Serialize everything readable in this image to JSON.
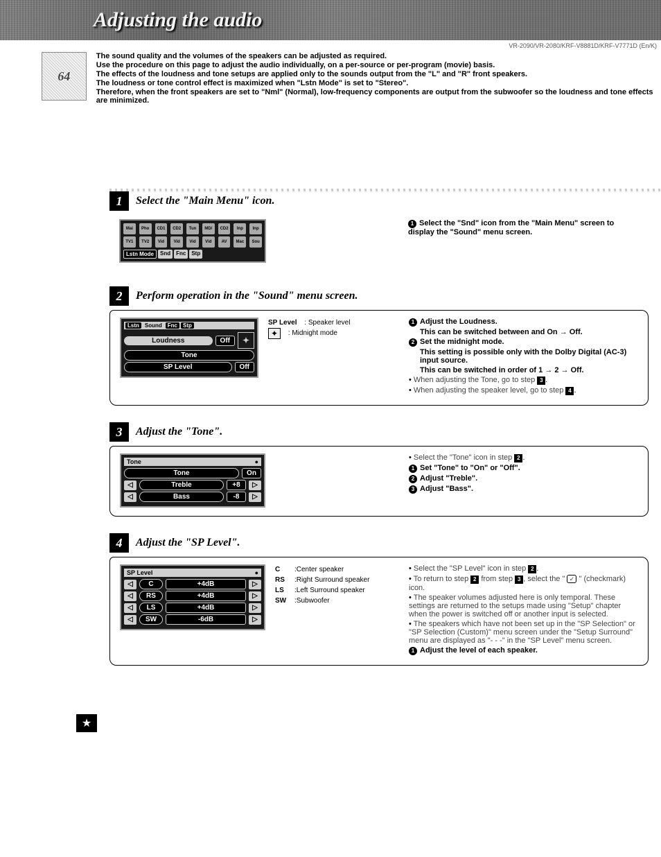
{
  "header": {
    "title": "Adjusting the audio",
    "model_line": "VR-2090/VR-2080/KRF-V8881D/KRF-V7771D (En/K)",
    "page_number": "64"
  },
  "intro_paragraphs": [
    "The sound quality and the volumes of the speakers can be adjusted as required.",
    "Use the procedure on this page to adjust the audio individually, on a per-source or per-program (movie) basis.",
    "The effects of the loudness and tone setups are applied only to the sounds output from the \"L\" and \"R\" front speakers.",
    "The loudness or tone control effect is maximized when \"Lstn Mode\" is set to \"Stereo\".",
    "Therefore, when the front speakers are set to \"Nml\" (Normal), low-frequency components are output from the subwoofer so the loudness and tone effects are minimized."
  ],
  "step1": {
    "num": "1",
    "title": "Select the \"Main Menu\" icon.",
    "osd_icons_top": [
      "Main Menu",
      "Phono",
      "CD1",
      "CD2",
      "Tuner",
      "MD/ Tape1",
      "CD2/ Tape2",
      "Input Digital",
      "Input Analog"
    ],
    "osd_icons_bot": [
      "TV1",
      "TV2",
      "Video1",
      "Video2",
      "Video3",
      "Video4",
      "AV Aux",
      "Macro",
      "Source Mode"
    ],
    "osd_bottombar": [
      "Lstn Mode",
      "Snd",
      "Fnc",
      "Stp"
    ],
    "right_note": "Select the \"Snd\" icon from the \"Main Menu\" screen to display the \"Sound\" menu screen."
  },
  "step2": {
    "num": "2",
    "title": "Perform operation in the \"Sound\" menu screen.",
    "osd_header": [
      "Lstn",
      "Sound",
      "Fnc",
      "Stp"
    ],
    "osd_items": [
      {
        "label": "Loudness",
        "value": "Off"
      },
      {
        "label": "Tone",
        "value": ""
      },
      {
        "label": "SP Level",
        "value": "Off"
      }
    ],
    "side_legend": [
      {
        "k": "SP Level",
        "v": ": Speaker level"
      },
      {
        "k": "",
        "v": ": Midnight mode"
      }
    ],
    "right_lines": [
      {
        "marker": "1",
        "text": "Adjust the Loudness.",
        "bold": true
      },
      {
        "marker": "",
        "text": "This can be switched between and On → Off.",
        "indent": true,
        "bold": true
      },
      {
        "marker": "2",
        "text": "Set the midnight mode.",
        "bold": true
      },
      {
        "marker": "",
        "text": "This setting is possible only with the Dolby Digital (AC-3) input source.",
        "indent": true,
        "bold": true
      },
      {
        "marker": "",
        "text": "This can be switched in order of  1 → 2 → Off.",
        "indent": true,
        "bold": true
      },
      {
        "marker": "•",
        "text": "When adjusting the Tone, go to step ",
        "ref": "3",
        "thin": true
      },
      {
        "marker": "•",
        "text": "When adjusting the speaker level, go to step ",
        "ref": "4",
        "thin": true
      }
    ]
  },
  "step3": {
    "num": "3",
    "title": "Adjust the \"Tone\".",
    "osd_title": "Tone",
    "osd_rows": [
      {
        "label": "Tone",
        "value": "On",
        "arrows": false
      },
      {
        "label": "Treble",
        "value": "+8",
        "arrows": true
      },
      {
        "label": "Bass",
        "value": "-8",
        "arrows": true
      }
    ],
    "right_lines": [
      {
        "marker": "•",
        "text": "Select the \"Tone\" icon in step ",
        "ref": "2",
        "thin": true
      },
      {
        "marker": "1",
        "text": "Set \"Tone\" to \"On\" or \"Off\".",
        "bold": true
      },
      {
        "marker": "2",
        "text": "Adjust \"Treble\".",
        "bold": true
      },
      {
        "marker": "3",
        "text": "Adjust \"Bass\".",
        "bold": true
      }
    ]
  },
  "step4": {
    "num": "4",
    "title": "Adjust the \"SP Level\".",
    "osd_title": "SP Level",
    "osd_rows": [
      {
        "label": "C",
        "value": "+4dB"
      },
      {
        "label": "RS",
        "value": "+4dB"
      },
      {
        "label": "LS",
        "value": "+4dB"
      },
      {
        "label": "SW",
        "value": "-6dB"
      }
    ],
    "legend": [
      {
        "k": "C",
        "v": ":Center speaker"
      },
      {
        "k": "RS",
        "v": ":Right Surround speaker"
      },
      {
        "k": "LS",
        "v": ":Left Surround speaker"
      },
      {
        "k": "SW",
        "v": ":Subwoofer"
      }
    ],
    "right_lines": [
      {
        "marker": "•",
        "text": "Select the \"SP Level\" icon in step ",
        "ref": "2",
        "thin": true
      },
      {
        "marker": "•",
        "text": "To return to step ",
        "ref": "2",
        "text2": " from step ",
        "ref2": "3",
        "text3": ", select the \" ✓ \" (checkmark) icon.",
        "thin": true,
        "check": true
      },
      {
        "marker": "•",
        "text": "The speaker volumes adjusted here is only temporal. These settings are returned to the setups made using \"Setup\" chapter when the power is switched off or another input is selected.",
        "thin": true
      },
      {
        "marker": "•",
        "text": "The speakers which have not been set up in the \"SP Selection\" or \"SP Selection (Custom)\" menu screen under the \"Setup Surround\" menu are displayed as \"- - -\" in the \"SP Level\" menu screen.",
        "thin": true
      },
      {
        "marker": "1",
        "text": "Adjust the level of each speaker.",
        "bold": true
      }
    ]
  },
  "footer_star": "★"
}
